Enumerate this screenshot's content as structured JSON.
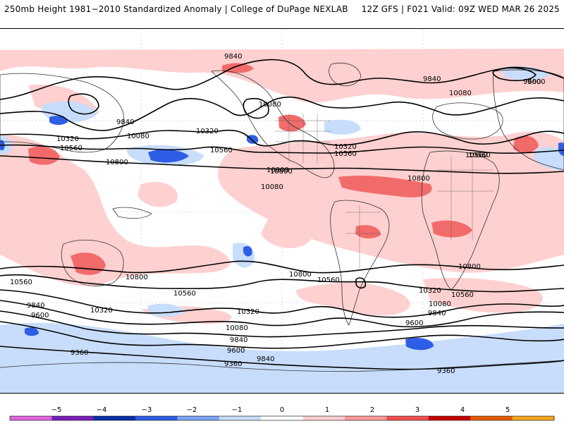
{
  "header": {
    "title_left": "250mb Height 1981−2010 Standardized Anomaly | College of DuPage NEXLAB",
    "title_right": "12Z GFS | F021 Valid: 09Z WED MAR 26 2025"
  },
  "map": {
    "projection": "global cylindrical",
    "variable": "250mb height standardized anomaly",
    "contour_labels": [
      "9840",
      "9840",
      "9600",
      "10080",
      "9840",
      "10080",
      "10320",
      "10560",
      "10080",
      "10320",
      "10560",
      "10800",
      "10320",
      "10560",
      "10800",
      "10800",
      "10560",
      "10800",
      "10800",
      "10800",
      "10560",
      "10560",
      "10560",
      "10320",
      "10320",
      "9840",
      "10080",
      "9600",
      "10080",
      "9840",
      "9600",
      "9840",
      "9600",
      "9600",
      "9360",
      "9360",
      "9360",
      "10080",
      "10800",
      "10560",
      "10320",
      "9840",
      "10560"
    ]
  },
  "colorbar": {
    "ticks": [
      "−5",
      "−4",
      "−3",
      "−2",
      "−1",
      "0",
      "1",
      "2",
      "3",
      "4",
      "5"
    ],
    "colors": [
      "#e066e0",
      "#7a1fb8",
      "#0a2fa8",
      "#2e5ee6",
      "#7da4f5",
      "#c8ddfb",
      "#ffffff",
      "#ffd0d0",
      "#ff9a9a",
      "#f25050",
      "#c80000",
      "#e65c00",
      "#f5a623"
    ]
  }
}
